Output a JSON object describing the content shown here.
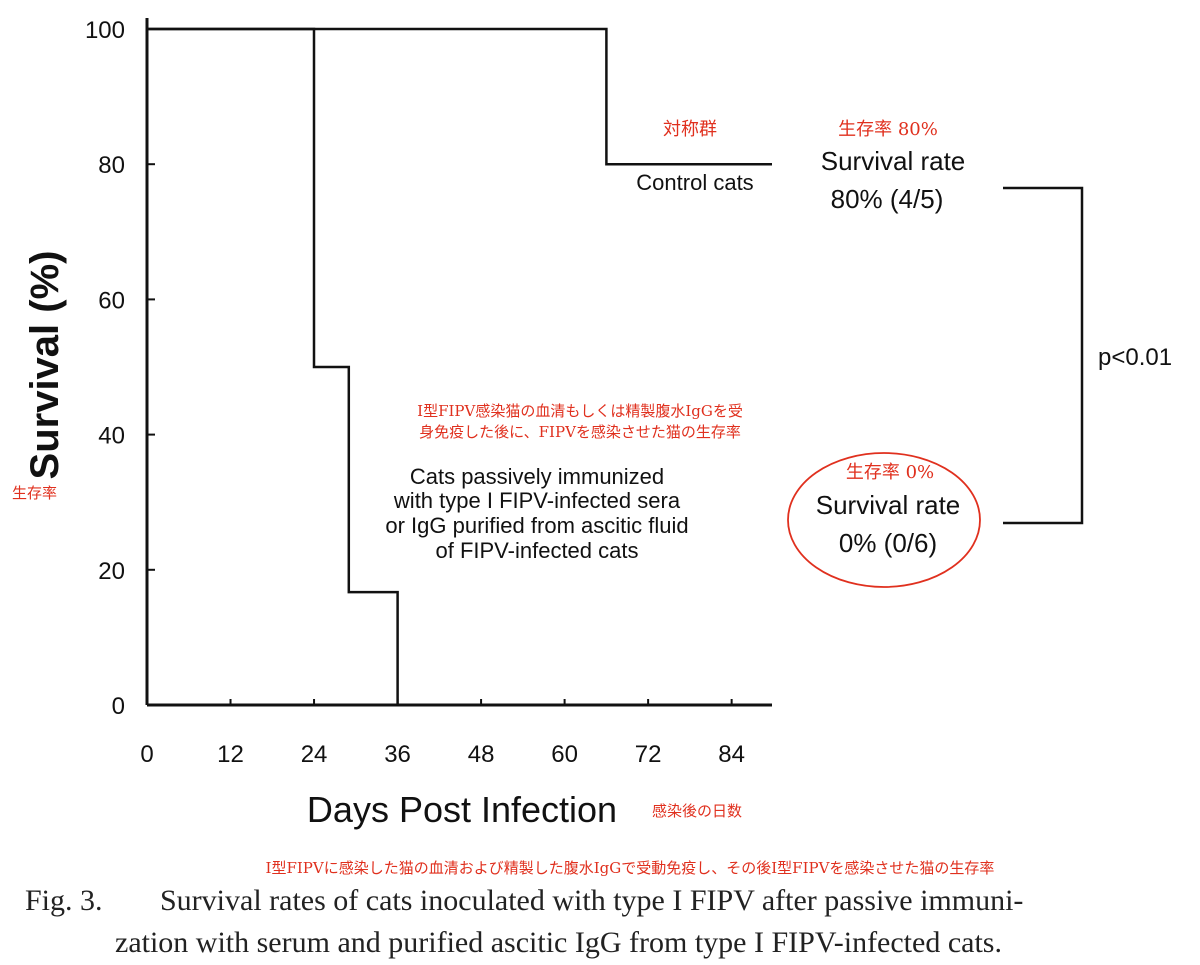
{
  "chart_data": {
    "type": "line",
    "step": true,
    "xlabel": "Days Post Infection",
    "ylabel": "Survival (%)",
    "xlim": [
      0,
      90
    ],
    "ylim": [
      0,
      100
    ],
    "x_ticks": [
      "0",
      "12",
      "24",
      "36",
      "48",
      "60",
      "72",
      "84"
    ],
    "y_ticks": [
      "0",
      "20",
      "40",
      "60",
      "80",
      "100"
    ],
    "grid": false,
    "series": [
      {
        "name": "Control cats",
        "x": [
          0,
          66,
          66,
          90
        ],
        "y": [
          100,
          100,
          80,
          80
        ],
        "survival_rate_label": "Survival rate",
        "survival_rate_value": "80% (4/5)"
      },
      {
        "name": "Cats passively immunized with type I FIPV-infected sera or IgG purified from ascitic fluid of FIPV-infected cats",
        "label_lines": [
          "Cats passively immunized",
          "with type I FIPV-infected sera",
          "or IgG purified from ascitic fluid",
          "of FIPV-infected cats"
        ],
        "x": [
          0,
          24,
          24,
          29,
          29,
          36,
          36,
          90
        ],
        "y": [
          100,
          100,
          50,
          50,
          16.7,
          16.7,
          0,
          0
        ],
        "survival_rate_label": "Survival rate",
        "survival_rate_value": "0% (0/6)"
      }
    ],
    "significance": "p<0.01"
  },
  "annotations": {
    "control_jp": "対称群",
    "rate80_jp": "生存率 80%",
    "rate0_jp": "生存率 0%",
    "ylabel_jp": "生存率",
    "xlabel_jp": "感染後の日数",
    "treated_jp_line1": "I型FIPV感染猫の血清もしくは精製腹水IgGを受",
    "treated_jp_line2": "身免疫した後に、FIPVを感染させた猫の生存率",
    "caption_jp": "I型FIPVに感染した猫の血清および精製した腹水IgGで受動免疫し、その後I型FIPVを感染させた猫の生存率",
    "accent_color": "#e0301e"
  },
  "caption": {
    "label": "Fig. 3.",
    "line1": "Survival rates of cats inoculated with type I FIPV after passive immuni-",
    "line2": "zation with serum and purified ascitic IgG from type I FIPV-infected cats."
  }
}
